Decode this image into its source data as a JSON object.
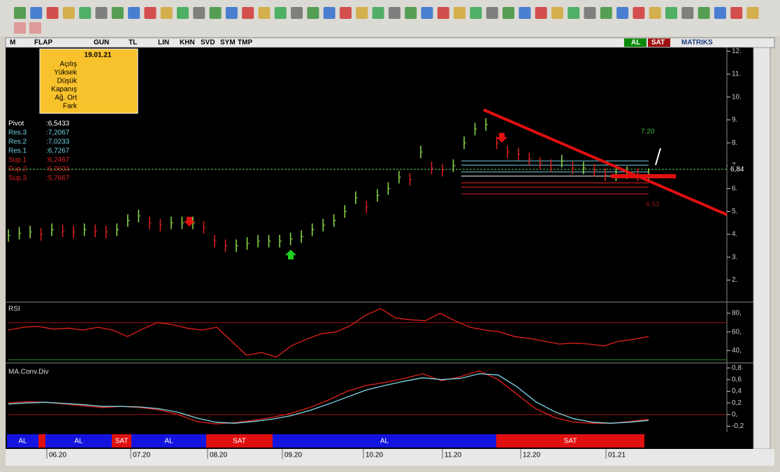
{
  "toolbar": {
    "symbol_bar": [
      "M",
      "FLAP",
      "GUN",
      "TL",
      "LIN",
      "KHN",
      "SVD",
      "SYM",
      "TMP"
    ],
    "al": "AL",
    "sat": "SAT",
    "brand": "MATRIKS"
  },
  "info_box": {
    "date": "19.01.21",
    "labels": [
      "Açılış",
      "Yüksek",
      "Düşük",
      "Kapanış",
      "Ağ. Ort",
      "Fark"
    ]
  },
  "pivot": [
    {
      "label": "Pivot",
      "value": 6.5433,
      "text": ":6,5433"
    },
    {
      "label": "Res.3",
      "value": 7.2067,
      "text": ":7,2067"
    },
    {
      "label": "Res.2",
      "value": 7.0233,
      "text": ":7,0233"
    },
    {
      "label": "Res.1",
      "value": 6.7267,
      "text": ":6,7267"
    },
    {
      "label": "Sup.1",
      "value": 6.2467,
      "text": ":6,2467"
    },
    {
      "label": "Sup.2",
      "value": 6.0633,
      "text": ":6,0633"
    },
    {
      "label": "Sup.3",
      "value": 5.7667,
      "text": ":5,7667"
    }
  ],
  "chart_data": [
    {
      "type": "bar",
      "values": [
        3.95,
        4.05,
        4.1,
        4.0,
        4.2,
        4.15,
        4.1,
        4.2,
        4.15,
        4.1,
        4.2,
        4.6,
        4.8,
        4.5,
        4.4,
        4.5,
        4.5,
        4.5,
        4.3,
        3.7,
        3.5,
        3.5,
        3.6,
        3.7,
        3.7,
        3.7,
        3.8,
        3.9,
        4.2,
        4.4,
        4.6,
        5.0,
        5.6,
        5.2,
        5.7,
        6.0,
        6.5,
        6.4,
        7.6,
        6.9,
        6.8,
        7.0,
        8.0,
        8.6,
        8.8,
        8.0,
        7.6,
        7.5,
        7.3,
        7.1,
        7.0,
        7.2,
        6.9,
        6.9,
        6.8,
        6.6,
        6.6,
        6.7,
        6.6,
        6.6
      ],
      "ylim": [
        1.1,
        12.1
      ],
      "yticks": [
        {
          "value": 12,
          "label": "12."
        },
        {
          "value": 11,
          "label": "11."
        },
        {
          "value": 10,
          "label": "10."
        },
        {
          "value": 9,
          "label": "9."
        },
        {
          "value": 8,
          "label": "8."
        },
        {
          "value": 7,
          "label": "7."
        },
        {
          "value": 6,
          "label": "6."
        },
        {
          "value": 5,
          "label": "5."
        },
        {
          "value": 4,
          "label": "4."
        },
        {
          "value": 3,
          "label": "3."
        },
        {
          "value": 2,
          "label": "2."
        }
      ],
      "current": {
        "value": 6.84,
        "label": "6,84"
      },
      "annotations": [
        {
          "value": 7.2,
          "label": "7.20",
          "color": "#3cb83c"
        },
        {
          "value": 6.53,
          "label": "6.53",
          "color": "#8b1a1a"
        }
      ]
    },
    {
      "type": "line",
      "title": "RSI",
      "color": "#e0201a",
      "values": [
        62,
        65,
        66,
        63,
        64,
        62,
        65,
        62,
        55,
        63,
        70,
        68,
        64,
        62,
        65,
        50,
        35,
        38,
        33,
        45,
        52,
        58,
        60,
        67,
        78,
        85,
        75,
        73,
        72,
        80,
        72,
        65,
        62,
        60,
        55,
        53,
        50,
        47,
        48,
        47,
        45,
        50,
        52,
        55
      ],
      "ylim": [
        29,
        89
      ],
      "yticks": [
        {
          "value": 80,
          "label": "80,"
        },
        {
          "value": 60,
          "label": "60,"
        },
        {
          "value": 40,
          "label": "40,"
        }
      ],
      "levels": [
        70,
        30
      ]
    },
    {
      "type": "line",
      "title": "MA.Conv.Div",
      "ylim": [
        -0.29,
        0.85
      ],
      "yticks": [
        {
          "value": 0.8,
          "label": "0,8"
        },
        {
          "value": 0.6,
          "label": "0,6"
        },
        {
          "value": 0.4,
          "label": "0,4"
        },
        {
          "value": 0.2,
          "label": "0,2"
        },
        {
          "value": 0,
          "label": "0,"
        },
        {
          "value": -0.2,
          "label": "-0,2"
        }
      ],
      "levels": [
        0
      ],
      "series": [
        {
          "color": "#e0201a",
          "values": [
            0.2,
            0.22,
            0.21,
            0.18,
            0.15,
            0.12,
            0.14,
            0.12,
            0.08,
            0.0,
            -0.12,
            -0.16,
            -0.14,
            -0.1,
            -0.05,
            0.02,
            0.12,
            0.25,
            0.4,
            0.5,
            0.55,
            0.62,
            0.7,
            0.58,
            0.65,
            0.75,
            0.6,
            0.35,
            0.1,
            -0.05,
            -0.13,
            -0.15,
            -0.15,
            -0.12,
            -0.08
          ]
        },
        {
          "color": "#7fd8e8",
          "values": [
            0.18,
            0.2,
            0.21,
            0.19,
            0.17,
            0.14,
            0.14,
            0.13,
            0.1,
            0.04,
            -0.06,
            -0.13,
            -0.15,
            -0.12,
            -0.08,
            -0.02,
            0.07,
            0.18,
            0.3,
            0.42,
            0.5,
            0.57,
            0.63,
            0.6,
            0.62,
            0.7,
            0.68,
            0.48,
            0.22,
            0.05,
            -0.07,
            -0.13,
            -0.15,
            -0.13,
            -0.1
          ]
        }
      ]
    }
  ],
  "signals": [
    "AL",
    "AL",
    "SAT",
    "AL",
    "SAT",
    "AL",
    "SAT"
  ],
  "dates": [
    "06.20",
    "07.20",
    "08.20",
    "09.20",
    "10.20",
    "11.20",
    "12.20",
    "01.21"
  ]
}
